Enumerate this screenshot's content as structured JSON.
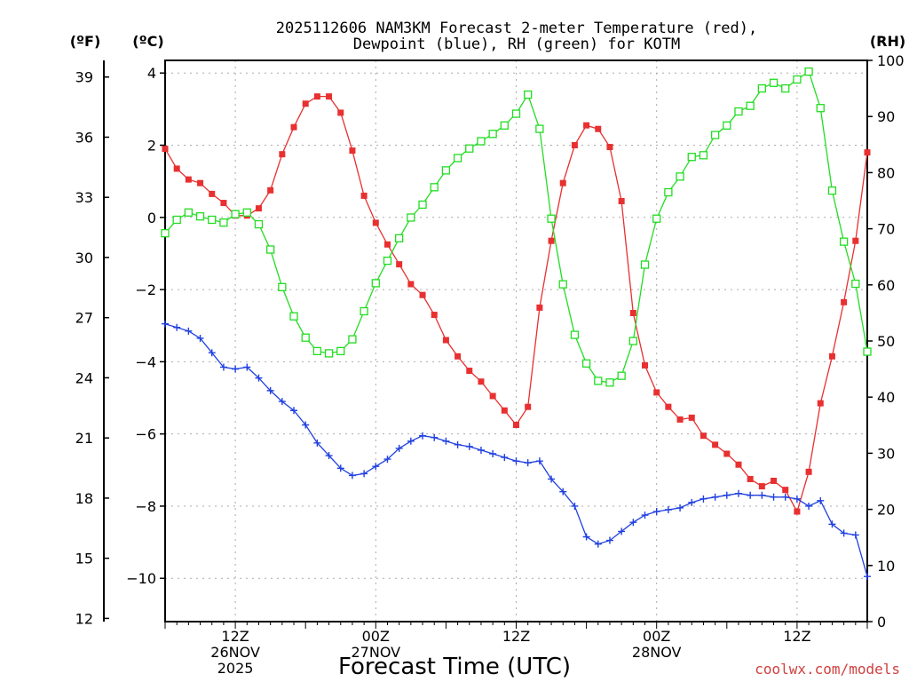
{
  "chart_data": {
    "type": "line",
    "title_lines": [
      "2025112606 NAM3KM Forecast 2-meter Temperature (red),",
      "Dewpoint (blue), RH (green) for KOTM"
    ],
    "xlabel": "Forecast Time (UTC)",
    "credit": "coolwx.com/models",
    "x_hours_range": [
      0,
      60
    ],
    "x_ticks": [
      {
        "hour": 6,
        "lines": [
          "12Z",
          "26NOV",
          "2025"
        ]
      },
      {
        "hour": 18,
        "lines": [
          "00Z",
          "27NOV"
        ]
      },
      {
        "hour": 30,
        "lines": [
          "12Z"
        ]
      },
      {
        "hour": 42,
        "lines": [
          "00Z",
          "28NOV"
        ]
      },
      {
        "hour": 54,
        "lines": [
          "12Z"
        ]
      }
    ],
    "left_axis_c": {
      "unit_label": "(ºC)",
      "range": [
        -11.2,
        4.35
      ],
      "ticks": [
        "4",
        "2",
        "0",
        "−2",
        "−4",
        "−6",
        "−8",
        "−10"
      ],
      "tick_values": [
        4,
        2,
        0,
        -2,
        -4,
        -6,
        -8,
        -10
      ]
    },
    "left_axis_f": {
      "unit_label": "(ºF)",
      "ticks": [
        "39",
        "36",
        "33",
        "30",
        "27",
        "24",
        "21",
        "18",
        "15",
        "12"
      ],
      "tick_values": [
        39,
        36,
        33,
        30,
        27,
        24,
        21,
        18,
        15,
        12
      ]
    },
    "right_axis_rh": {
      "unit_label": "(RH)",
      "range": [
        0,
        100
      ],
      "ticks": [
        "100",
        "90",
        "80",
        "70",
        "60",
        "50",
        "40",
        "30",
        "20",
        "10",
        "0"
      ],
      "tick_values": [
        100,
        90,
        80,
        70,
        60,
        50,
        40,
        30,
        20,
        10,
        0
      ]
    },
    "series": [
      {
        "name": "2-meter Temperature",
        "axis": "c",
        "color": "#e83030",
        "marker": "filled-square",
        "x": [
          0,
          1,
          2,
          3,
          4,
          5,
          6,
          7,
          8,
          9,
          10,
          11,
          12,
          13,
          14,
          15,
          16,
          17,
          18,
          19,
          20,
          21,
          22,
          23,
          24,
          25,
          26,
          27,
          28,
          29,
          30,
          31,
          32,
          33,
          34,
          35,
          36,
          37,
          38,
          39,
          40,
          41,
          42,
          43,
          44,
          45,
          46,
          47,
          48,
          49,
          50,
          51,
          52,
          53,
          54,
          55,
          56,
          57,
          58,
          59,
          60
        ],
        "values": [
          1.9,
          1.35,
          1.05,
          0.95,
          0.65,
          0.4,
          0.05,
          0.05,
          0.25,
          0.75,
          1.75,
          2.5,
          3.15,
          3.35,
          3.35,
          2.9,
          1.85,
          0.6,
          -0.15,
          -0.75,
          -1.3,
          -1.85,
          -2.15,
          -2.7,
          -3.4,
          -3.85,
          -4.25,
          -4.55,
          -4.95,
          -5.35,
          -5.75,
          -5.25,
          -2.5,
          -0.65,
          0.95,
          2.0,
          2.55,
          2.45,
          1.95,
          0.45,
          -2.65,
          -4.1,
          -4.85,
          -5.25,
          -5.6,
          -5.55,
          -6.05,
          -6.3,
          -6.55,
          -6.85,
          -7.25,
          -7.45,
          -7.3,
          -7.55,
          -8.15,
          -7.05,
          -5.15,
          -3.85,
          -2.35,
          -0.65,
          1.8
        ],
        "note": "values in deg C"
      },
      {
        "name": "Dewpoint",
        "axis": "c",
        "color": "#2040e0",
        "marker": "plus",
        "x": [
          0,
          1,
          2,
          3,
          4,
          5,
          6,
          7,
          8,
          9,
          10,
          11,
          12,
          13,
          14,
          15,
          16,
          17,
          18,
          19,
          20,
          21,
          22,
          23,
          24,
          25,
          26,
          27,
          28,
          29,
          30,
          31,
          32,
          33,
          34,
          35,
          36,
          37,
          38,
          39,
          40,
          41,
          42,
          43,
          44,
          45,
          46,
          47,
          48,
          49,
          50,
          51,
          52,
          53,
          54,
          55,
          56,
          57,
          58,
          59,
          60
        ],
        "values": [
          -2.95,
          -3.05,
          -3.15,
          -3.35,
          -3.75,
          -4.15,
          -4.2,
          -4.15,
          -4.45,
          -4.8,
          -5.1,
          -5.35,
          -5.75,
          -6.25,
          -6.6,
          -6.95,
          -7.15,
          -7.1,
          -6.9,
          -6.7,
          -6.4,
          -6.2,
          -6.05,
          -6.1,
          -6.2,
          -6.3,
          -6.35,
          -6.45,
          -6.55,
          -6.65,
          -6.75,
          -6.8,
          -6.75,
          -7.25,
          -7.6,
          -8.0,
          -8.85,
          -9.05,
          -8.95,
          -8.7,
          -8.45,
          -8.25,
          -8.15,
          -8.1,
          -8.05,
          -7.9,
          -7.8,
          -7.75,
          -7.7,
          -7.65,
          -7.7,
          -7.7,
          -7.75,
          -7.75,
          -7.8,
          -8.0,
          -7.85,
          -8.5,
          -8.75,
          -8.8,
          -9.95
        ],
        "note": "values in deg C"
      },
      {
        "name": "RH",
        "axis": "rh",
        "color": "#22dd22",
        "marker": "open-square",
        "x": [
          0,
          1,
          2,
          3,
          4,
          5,
          6,
          7,
          8,
          9,
          10,
          11,
          12,
          13,
          14,
          15,
          16,
          17,
          18,
          19,
          20,
          21,
          22,
          23,
          24,
          25,
          26,
          27,
          28,
          29,
          30,
          31,
          32,
          33,
          34,
          35,
          36,
          37,
          38,
          39,
          40,
          41,
          42,
          43,
          44,
          45,
          46,
          47,
          48,
          49,
          50,
          51,
          52,
          53,
          54,
          55,
          56,
          57,
          58,
          59,
          60
        ],
        "values": [
          69.2,
          71.6,
          72.9,
          72.2,
          71.6,
          71.1,
          72.6,
          72.9,
          70.8,
          66.3,
          59.6,
          54.4,
          50.6,
          48.2,
          47.8,
          48.2,
          50.3,
          55.3,
          60.3,
          64.3,
          68.3,
          72.0,
          74.3,
          77.4,
          80.4,
          82.6,
          84.3,
          85.6,
          86.9,
          88.4,
          90.5,
          93.9,
          87.8,
          71.8,
          60.1,
          51.1,
          46.0,
          42.9,
          42.6,
          43.8,
          50.0,
          63.6,
          71.8,
          76.5,
          79.3,
          82.8,
          83.1,
          86.7,
          88.4,
          90.9,
          91.9,
          95.0,
          96.0,
          95.0,
          96.6,
          98.0,
          91.5,
          76.8,
          67.7,
          60.2,
          48.1
        ]
      }
    ]
  }
}
